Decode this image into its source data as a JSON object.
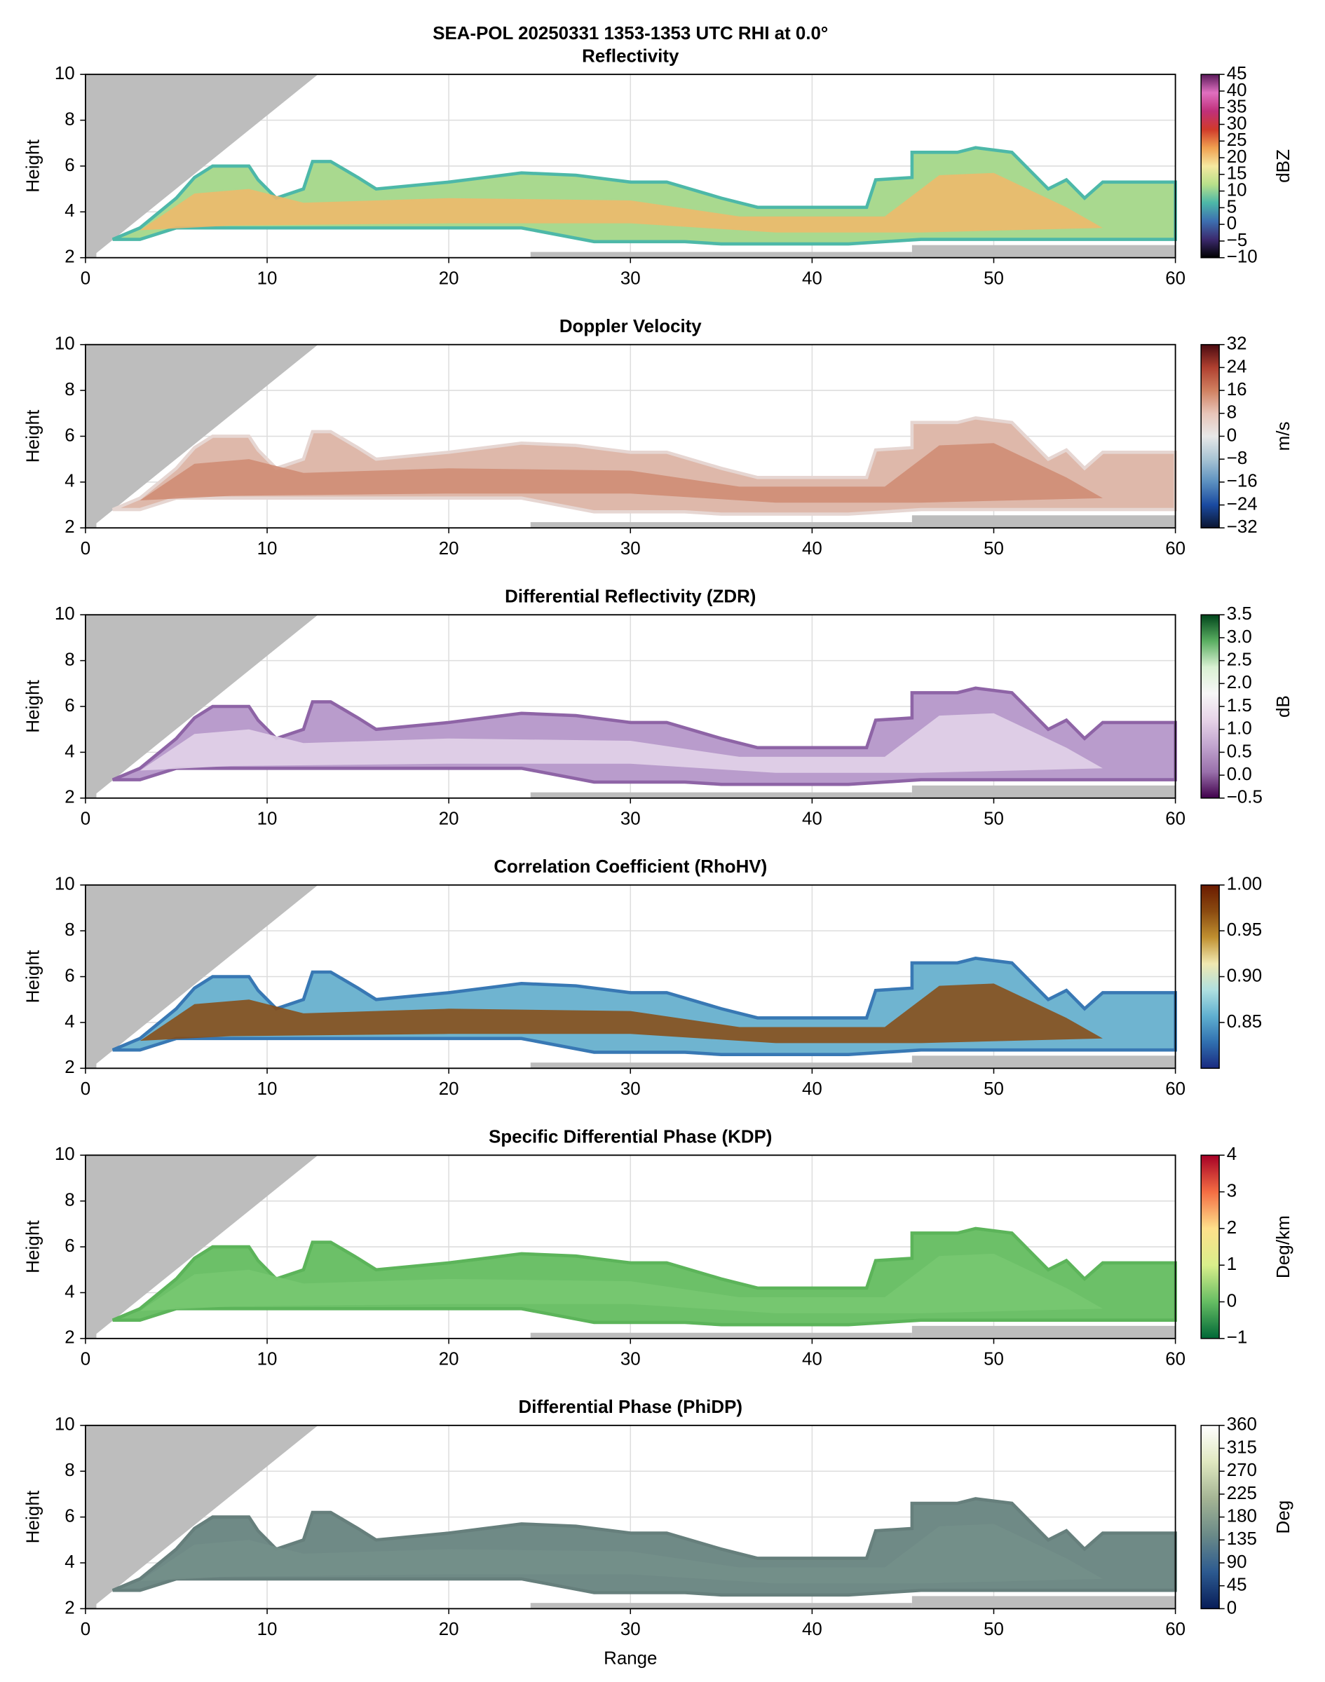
{
  "title": "SEA-POL 20250331 1353-1353 UTC RHI at 0.0°",
  "chart_data": [
    {
      "type": "contour",
      "title": "Reflectivity",
      "ylabel": "Height",
      "xlim": [
        0,
        60
      ],
      "ylim": [
        2,
        10
      ],
      "xticks": [
        0,
        10,
        20,
        30,
        40,
        50,
        60
      ],
      "yticks": [
        2,
        4,
        6,
        8,
        10
      ],
      "grid": true,
      "colorbar": {
        "label": "dBZ",
        "lim": [
          -10,
          45
        ],
        "ticks": [
          {
            "value": -10,
            "label": "−10"
          },
          {
            "value": -5,
            "label": "−5"
          },
          0,
          5,
          10,
          15,
          20,
          25,
          30,
          35,
          40,
          45
        ],
        "colors": [
          "#000000",
          "#3b2a6e",
          "#3d6fb0",
          "#4db8a8",
          "#b8e08a",
          "#f5e8a0",
          "#f0a050",
          "#d03a2a",
          "#c0307a",
          "#e070c0",
          "#5a1a5a"
        ]
      }
    },
    {
      "type": "contour",
      "title": "Doppler Velocity",
      "ylabel": "Height",
      "xlim": [
        0,
        60
      ],
      "ylim": [
        2,
        10
      ],
      "xticks": [
        0,
        10,
        20,
        30,
        40,
        50,
        60
      ],
      "yticks": [
        2,
        4,
        6,
        8,
        10
      ],
      "grid": true,
      "colorbar": {
        "label": "m/s",
        "lim": [
          -32,
          32
        ],
        "ticks": [
          {
            "value": -32,
            "label": "−32"
          },
          {
            "value": -24,
            "label": "−24"
          },
          {
            "value": -16,
            "label": "−16"
          },
          {
            "value": -8,
            "label": "−8"
          },
          0,
          8,
          16,
          24,
          32
        ],
        "colors": [
          "#0b1530",
          "#1a4aa0",
          "#5b90c0",
          "#a8c4d4",
          "#e8e8e8",
          "#e8c4b8",
          "#d08060",
          "#b04030",
          "#4a0a10"
        ]
      }
    },
    {
      "type": "contour",
      "title": "Differential Reflectivity (ZDR)",
      "ylabel": "Height",
      "xlim": [
        0,
        60
      ],
      "ylim": [
        2,
        10
      ],
      "xticks": [
        0,
        10,
        20,
        30,
        40,
        50,
        60
      ],
      "yticks": [
        2,
        4,
        6,
        8,
        10
      ],
      "grid": true,
      "colorbar": {
        "label": "dB",
        "lim": [
          -0.5,
          3.5
        ],
        "ticks": [
          {
            "value": -0.5,
            "label": "−0.5"
          },
          {
            "value": 0,
            "label": "0.0"
          },
          0.5,
          {
            "value": 1,
            "label": "1.0"
          },
          1.5,
          {
            "value": 2,
            "label": "2.0"
          },
          2.5,
          {
            "value": 3,
            "label": "3.0"
          },
          3.5
        ],
        "colors": [
          "#40004b",
          "#9970ab",
          "#c2a5cf",
          "#e7d4e8",
          "#f7f7f7",
          "#d9f0d3",
          "#5aae61",
          "#00441b"
        ]
      }
    },
    {
      "type": "contour",
      "title": "Correlation Coefficient (RhoHV)",
      "ylabel": "Height",
      "xlim": [
        0,
        60
      ],
      "ylim": [
        2,
        10
      ],
      "xticks": [
        0,
        10,
        20,
        30,
        40,
        50,
        60
      ],
      "yticks": [
        2,
        4,
        6,
        8,
        10
      ],
      "grid": true,
      "colorbar": {
        "label": "",
        "lim": [
          0.8,
          1.0
        ],
        "ticks": [
          0.85,
          {
            "value": 0.9,
            "label": "0.90"
          },
          0.95,
          {
            "value": 1.0,
            "label": "1.00"
          }
        ],
        "colors": [
          "#1a2a80",
          "#3070b0",
          "#60b0d0",
          "#b0e0e0",
          "#f0e8b0",
          "#c09030",
          "#8a4a10",
          "#6a1a00"
        ]
      }
    },
    {
      "type": "contour",
      "title": "Specific Differential Phase (KDP)",
      "ylabel": "Height",
      "xlim": [
        0,
        60
      ],
      "ylim": [
        2,
        10
      ],
      "xticks": [
        0,
        10,
        20,
        30,
        40,
        50,
        60
      ],
      "yticks": [
        2,
        4,
        6,
        8,
        10
      ],
      "grid": true,
      "colorbar": {
        "label": "Deg/km",
        "lim": [
          -1,
          4
        ],
        "ticks": [
          {
            "value": -1,
            "label": "−1"
          },
          0,
          1,
          2,
          3,
          4
        ],
        "colors": [
          "#006837",
          "#66bd63",
          "#d9ef8b",
          "#fee08b",
          "#f46d43",
          "#a50026"
        ]
      }
    },
    {
      "type": "contour",
      "title": "Differential Phase (PhiDP)",
      "ylabel": "Height",
      "xlabel": "Range",
      "xlim": [
        0,
        60
      ],
      "ylim": [
        2,
        10
      ],
      "xticks": [
        0,
        10,
        20,
        30,
        40,
        50,
        60
      ],
      "yticks": [
        2,
        4,
        6,
        8,
        10
      ],
      "grid": true,
      "colorbar": {
        "label": "Deg",
        "lim": [
          0,
          360
        ],
        "ticks": [
          0,
          45,
          90,
          135,
          180,
          225,
          270,
          315,
          360
        ],
        "colors": [
          "#081d58",
          "#2c5a90",
          "#6a8a88",
          "#a4b494",
          "#e0e8c0",
          "#ffffff"
        ]
      }
    }
  ]
}
